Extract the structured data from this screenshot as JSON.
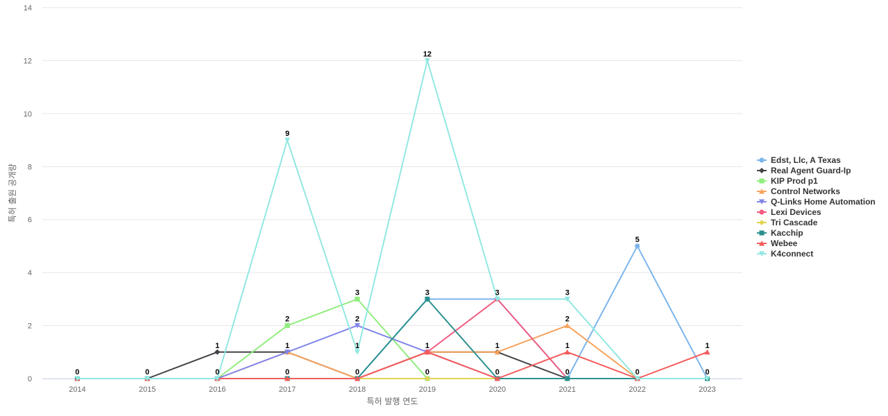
{
  "chart_data": {
    "type": "line",
    "title": "",
    "xlabel": "특허 발행 연도",
    "ylabel": "특허 출원 공개량",
    "ylim": [
      0,
      14
    ],
    "yticks": [
      0,
      2,
      4,
      6,
      8,
      10,
      12,
      14
    ],
    "categories": [
      "2014",
      "2015",
      "2016",
      "2017",
      "2018",
      "2019",
      "2020",
      "2021",
      "2022",
      "2023"
    ],
    "grid": true,
    "legend_position": "right",
    "series": [
      {
        "name": "Edst, Llc, A Texas",
        "color": "#7cb5ec",
        "marker": "circle",
        "values": [
          0,
          0,
          0,
          0,
          0,
          3,
          3,
          0,
          5,
          0
        ]
      },
      {
        "name": "Real Agent Guard-Ip",
        "color": "#434348",
        "marker": "diamond",
        "values": [
          0,
          0,
          1,
          1,
          0,
          1,
          1,
          0,
          0,
          0
        ]
      },
      {
        "name": "KIP Prod p1",
        "color": "#90ed7d",
        "marker": "square",
        "values": [
          0,
          0,
          0,
          2,
          3,
          0,
          0,
          0,
          0,
          0
        ]
      },
      {
        "name": "Control Networks",
        "color": "#f7a35c",
        "marker": "triangle",
        "values": [
          0,
          0,
          0,
          1,
          0,
          1,
          1,
          2,
          0,
          0
        ]
      },
      {
        "name": "Q-Links Home Automation",
        "color": "#8085e9",
        "marker": "triangle-down",
        "values": [
          0,
          0,
          0,
          1,
          2,
          1,
          0,
          0,
          0,
          0
        ]
      },
      {
        "name": "Lexi Devices",
        "color": "#f15c80",
        "marker": "circle",
        "values": [
          0,
          0,
          0,
          0,
          0,
          1,
          3,
          0,
          0,
          0
        ]
      },
      {
        "name": "Tri Cascade",
        "color": "#e4d354",
        "marker": "diamond",
        "values": [
          0,
          0,
          0,
          0,
          0,
          0,
          0,
          0,
          0,
          0
        ]
      },
      {
        "name": "Kacchip",
        "color": "#2b908f",
        "marker": "square",
        "values": [
          0,
          0,
          0,
          0,
          0,
          3,
          0,
          0,
          0,
          0
        ]
      },
      {
        "name": "Webee",
        "color": "#f45b5b",
        "marker": "triangle",
        "values": [
          0,
          0,
          0,
          0,
          0,
          1,
          0,
          1,
          0,
          1
        ]
      },
      {
        "name": "K4connect",
        "color": "#91e8e1",
        "marker": "triangle-down",
        "values": [
          0,
          0,
          0,
          9,
          1,
          12,
          3,
          3,
          0,
          0
        ]
      }
    ],
    "data_labels": [
      {
        "x": "2014",
        "value": "0",
        "series_index": 9
      },
      {
        "x": "2015",
        "value": "0",
        "series_index": 9
      },
      {
        "x": "2016",
        "value": "0",
        "series_index": 9
      },
      {
        "x": "2016",
        "value": "1",
        "series_index": 1
      },
      {
        "x": "2017",
        "value": "9",
        "series_index": 9
      },
      {
        "x": "2017",
        "value": "2",
        "series_index": 2
      },
      {
        "x": "2017",
        "value": "1",
        "series_index": 4
      },
      {
        "x": "2017",
        "value": "0",
        "series_index": 7
      },
      {
        "x": "2018",
        "value": "3",
        "series_index": 2
      },
      {
        "x": "2018",
        "value": "2",
        "series_index": 4
      },
      {
        "x": "2018",
        "value": "1",
        "series_index": 9
      },
      {
        "x": "2018",
        "value": "0",
        "series_index": 7
      },
      {
        "x": "2019",
        "value": "12",
        "series_index": 9
      },
      {
        "x": "2019",
        "value": "3",
        "series_index": 7
      },
      {
        "x": "2019",
        "value": "1",
        "series_index": 8
      },
      {
        "x": "2019",
        "value": "0",
        "series_index": 2
      },
      {
        "x": "2020",
        "value": "3",
        "series_index": 5
      },
      {
        "x": "2020",
        "value": "1",
        "series_index": 1
      },
      {
        "x": "2020",
        "value": "0",
        "series_index": 8
      },
      {
        "x": "2021",
        "value": "3",
        "series_index": 9
      },
      {
        "x": "2021",
        "value": "2",
        "series_index": 3
      },
      {
        "x": "2021",
        "value": "1",
        "series_index": 8
      },
      {
        "x": "2021",
        "value": "0",
        "series_index": 7
      },
      {
        "x": "2022",
        "value": "5",
        "series_index": 0
      },
      {
        "x": "2022",
        "value": "0",
        "series_index": 9
      },
      {
        "x": "2023",
        "value": "1",
        "series_index": 8
      },
      {
        "x": "2023",
        "value": "0",
        "series_index": 7
      }
    ],
    "gridline_color": "#e6e6e6",
    "axis_line_color": "#ccd6eb"
  }
}
